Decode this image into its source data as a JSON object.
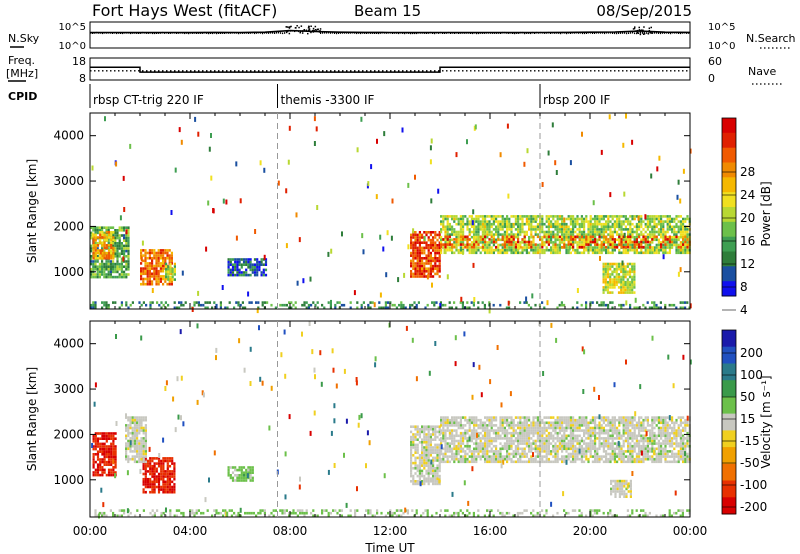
{
  "header": {
    "site": "Fort Hays West (fitACF)",
    "beam": "Beam 15",
    "date": "08/Sep/2015"
  },
  "noise_panel": {
    "left_label": "N.Sky",
    "left_ticks": [
      "10^5",
      "10^0"
    ],
    "right_label": "N.Search",
    "right_ticks": [
      "10^5",
      "10^0"
    ]
  },
  "freq_panel": {
    "left_label_line1": "Freq.",
    "left_label_line2": "[MHz]",
    "left_ticks": [
      "18",
      "8"
    ],
    "right_label": "Nave",
    "right_ticks": [
      "60",
      "0"
    ]
  },
  "cpid": {
    "label": "CPID",
    "segments": [
      {
        "start_hour": 0,
        "name": "rbsp CT-trig 220 IF"
      },
      {
        "start_hour": 7.5,
        "name": "themis -3300 IF"
      },
      {
        "start_hour": 18,
        "name": "rbsp 200 IF"
      }
    ]
  },
  "time_axis": {
    "label": "Time UT",
    "ticks": [
      "00:00",
      "04:00",
      "08:00",
      "12:00",
      "16:00",
      "20:00",
      "00:00"
    ]
  },
  "range_axis": {
    "label": "Slant Range [km]",
    "ticks": [
      "1000",
      "2000",
      "3000",
      "4000"
    ]
  },
  "power_colorbar": {
    "label": "Power [dB]",
    "ticks": [
      "4",
      "8",
      "12",
      "16",
      "20",
      "24",
      "28"
    ],
    "colors": [
      "#1010ee",
      "#1a4fa0",
      "#2e7d3a",
      "#3e9e52",
      "#6cc04a",
      "#b8d832",
      "#f0e020",
      "#f5b800",
      "#f08a00",
      "#f05a00",
      "#e02000",
      "#d80000"
    ]
  },
  "velocity_colorbar": {
    "label": "Velocity [m s⁻¹]",
    "ticks": [
      "200",
      "100",
      "50",
      "15",
      "-15",
      "-50",
      "-100",
      "-200"
    ],
    "colors": [
      "#1a1aaa",
      "#2050c0",
      "#2a7a8a",
      "#3a9a4a",
      "#6cc04a",
      "#c8c8c0",
      "#f0d020",
      "#f0a000",
      "#f07000",
      "#e83000",
      "#d80000"
    ]
  },
  "chart_data": [
    {
      "type": "line",
      "title": "N.Sky / N.Search",
      "x_range_hours": [
        0,
        24
      ],
      "y_scale": "log",
      "ylim": [
        1,
        100000
      ],
      "series": [
        {
          "name": "N.Sky",
          "x": [
            0,
            1,
            2,
            3,
            4,
            5,
            6,
            7,
            8,
            9,
            10,
            11,
            12,
            13,
            14,
            15,
            16,
            17,
            18,
            19,
            20,
            21,
            22,
            23,
            24
          ],
          "y": [
            900,
            950,
            900,
            950,
            900,
            1000,
            950,
            1100,
            2200,
            1500,
            1100,
            1000,
            950,
            900,
            950,
            900,
            950,
            900,
            950,
            1000,
            1100,
            1200,
            1900,
            1100,
            1000
          ]
        }
      ]
    },
    {
      "type": "line",
      "title": "Freq. / Nave",
      "x_range_hours": [
        0,
        24
      ],
      "series": [
        {
          "name": "Freq. [MHz]",
          "x": [
            0,
            2,
            2,
            14,
            14,
            24
          ],
          "y": [
            13.8,
            13.8,
            11.6,
            11.6,
            13.8,
            13.8
          ]
        },
        {
          "name": "Nave",
          "x": [
            0,
            24
          ],
          "y": [
            25,
            25
          ]
        }
      ],
      "ylim_freq": [
        8,
        18
      ],
      "ylim_nave": [
        0,
        60
      ]
    },
    {
      "type": "heatmap",
      "title": "Power [dB]",
      "x_range_hours": [
        0,
        24
      ],
      "ylim_km": [
        180,
        4500
      ],
      "zlim": [
        0,
        32
      ],
      "regions": [
        {
          "t0": 0.0,
          "t1": 1.5,
          "r0": 900,
          "r1": 2000,
          "value": 10
        },
        {
          "t0": 0.1,
          "t1": 0.9,
          "r0": 1300,
          "r1": 1900,
          "value": 22
        },
        {
          "t0": 2.0,
          "t1": 3.3,
          "r0": 750,
          "r1": 1500,
          "value": 24
        },
        {
          "t0": 3.0,
          "t1": 3.4,
          "r0": 800,
          "r1": 1200,
          "value": 14
        },
        {
          "t0": 5.5,
          "t1": 7.0,
          "r0": 900,
          "r1": 1300,
          "value": 5
        },
        {
          "t0": 12.8,
          "t1": 14.0,
          "r0": 900,
          "r1": 1900,
          "value": 26
        },
        {
          "t0": 14.0,
          "t1": 24.0,
          "r0": 1400,
          "r1": 2250,
          "value": 14
        },
        {
          "t0": 14.0,
          "t1": 24.0,
          "r0": 1550,
          "r1": 1800,
          "value": 26
        },
        {
          "t0": 20.5,
          "t1": 21.8,
          "r0": 550,
          "r1": 1200,
          "value": 16
        },
        {
          "t0": 0.0,
          "t1": 24.0,
          "r0": 180,
          "r1": 350,
          "value": 8
        }
      ]
    },
    {
      "type": "heatmap",
      "title": "Velocity [m s⁻¹]",
      "x_range_hours": [
        0,
        24
      ],
      "ylim_km": [
        180,
        4500
      ],
      "zlim": [
        -250,
        250
      ],
      "regions": [
        {
          "t0": 0.1,
          "t1": 1.0,
          "r0": 1100,
          "r1": 2050,
          "value": -200
        },
        {
          "t0": 2.1,
          "t1": 3.4,
          "r0": 700,
          "r1": 1500,
          "value": -200
        },
        {
          "t0": 1.4,
          "t1": 2.2,
          "r0": 1400,
          "r1": 2400,
          "value": 0
        },
        {
          "t0": 5.5,
          "t1": 6.5,
          "r0": 1000,
          "r1": 1300,
          "value": 40
        },
        {
          "t0": 12.8,
          "t1": 14.0,
          "r0": 900,
          "r1": 2200,
          "value": 0
        },
        {
          "t0": 14.0,
          "t1": 24.0,
          "r0": 1400,
          "r1": 2400,
          "value": 0
        },
        {
          "t0": 20.8,
          "t1": 21.6,
          "r0": 600,
          "r1": 1000,
          "value": 0
        },
        {
          "t0": 0.0,
          "t1": 24.0,
          "r0": 180,
          "r1": 350,
          "value": 30
        }
      ]
    }
  ]
}
